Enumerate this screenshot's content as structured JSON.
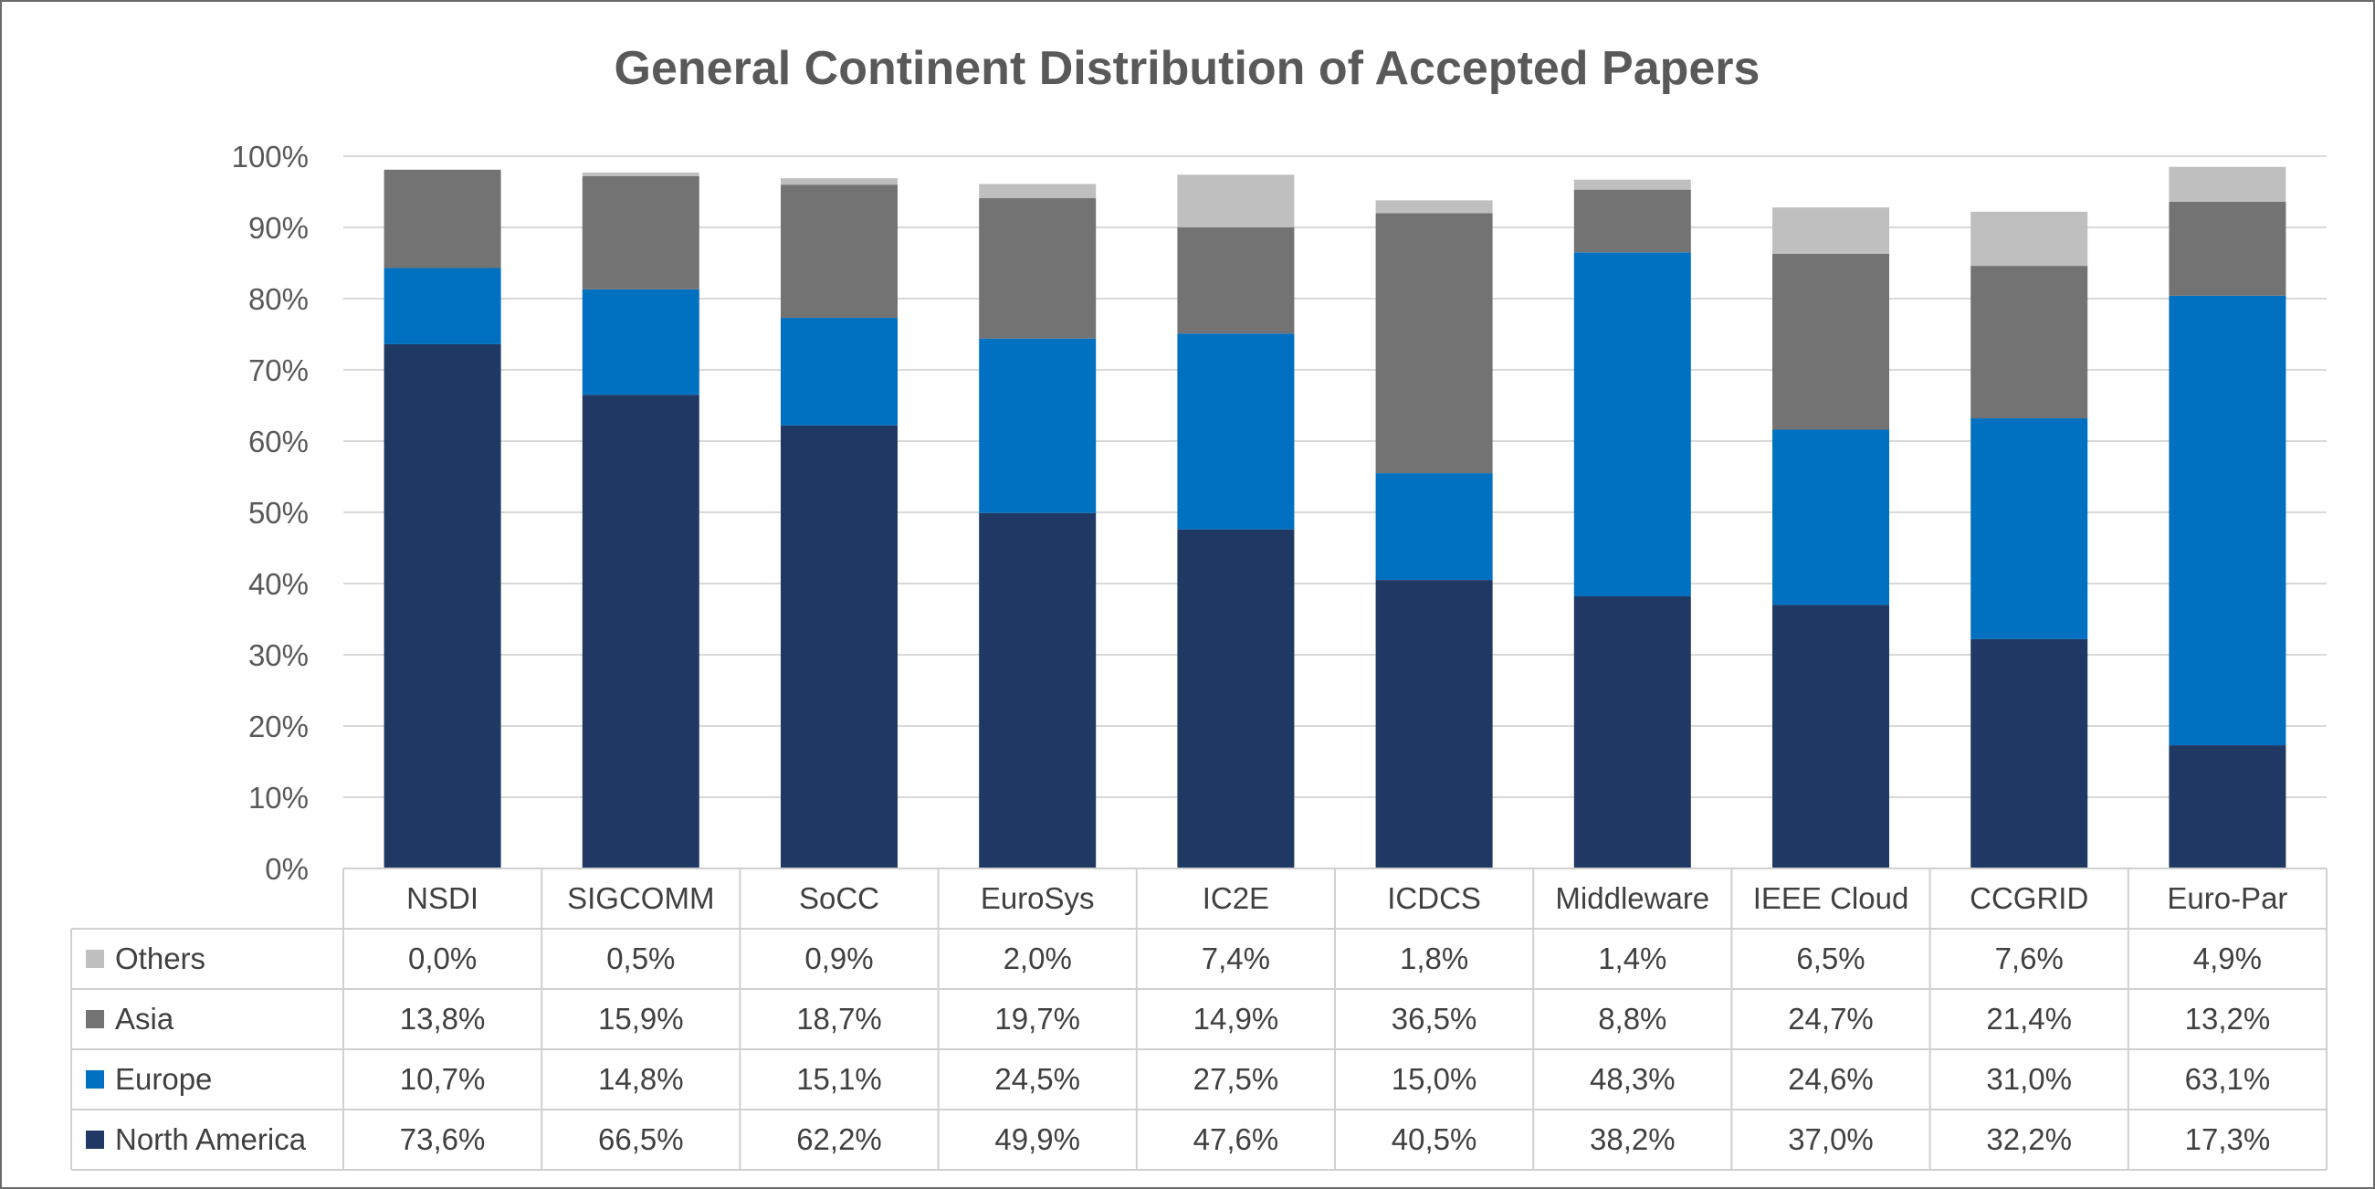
{
  "chart_data": {
    "type": "bar",
    "stacked": true,
    "title": "General Continent Distribution of Accepted Papers",
    "xlabel": "",
    "ylabel": "",
    "ylim": [
      0,
      100
    ],
    "y_ticks": [
      "0%",
      "10%",
      "20%",
      "30%",
      "40%",
      "50%",
      "60%",
      "70%",
      "80%",
      "90%",
      "100%"
    ],
    "grid": true,
    "legend": "data-table-left",
    "categories": [
      "NSDI",
      "SIGCOMM",
      "SoCC",
      "EuroSys",
      "IC2E",
      "ICDCS",
      "Middleware",
      "IEEE Cloud",
      "CCGRID",
      "Euro-Par"
    ],
    "series": [
      {
        "name": "North America",
        "color": "#203864",
        "values": [
          73.6,
          66.5,
          62.2,
          49.9,
          47.6,
          40.5,
          38.2,
          37.0,
          32.2,
          17.3
        ],
        "labels": [
          "73,6%",
          "66,5%",
          "62,2%",
          "49,9%",
          "47,6%",
          "40,5%",
          "38,2%",
          "37,0%",
          "32,2%",
          "17,3%"
        ]
      },
      {
        "name": "Europe",
        "color": "#0070C0",
        "values": [
          10.7,
          14.8,
          15.1,
          24.5,
          27.5,
          15.0,
          48.3,
          24.6,
          31.0,
          63.1
        ],
        "labels": [
          "10,7%",
          "14,8%",
          "15,1%",
          "24,5%",
          "27,5%",
          "15,0%",
          "48,3%",
          "24,6%",
          "31,0%",
          "63,1%"
        ]
      },
      {
        "name": "Asia",
        "color": "#737373",
        "values": [
          13.8,
          15.9,
          18.7,
          19.7,
          14.9,
          36.5,
          8.8,
          24.7,
          21.4,
          13.2
        ],
        "labels": [
          "13,8%",
          "15,9%",
          "18,7%",
          "19,7%",
          "14,9%",
          "36,5%",
          "8,8%",
          "24,7%",
          "21,4%",
          "13,2%"
        ]
      },
      {
        "name": "Others",
        "color": "#BFBFBF",
        "values": [
          0.0,
          0.5,
          0.9,
          2.0,
          7.4,
          1.8,
          1.4,
          6.5,
          7.6,
          4.9
        ],
        "labels": [
          "0,0%",
          "0,5%",
          "0,9%",
          "2,0%",
          "7,4%",
          "1,8%",
          "1,4%",
          "6,5%",
          "7,6%",
          "4,9%"
        ]
      }
    ]
  }
}
